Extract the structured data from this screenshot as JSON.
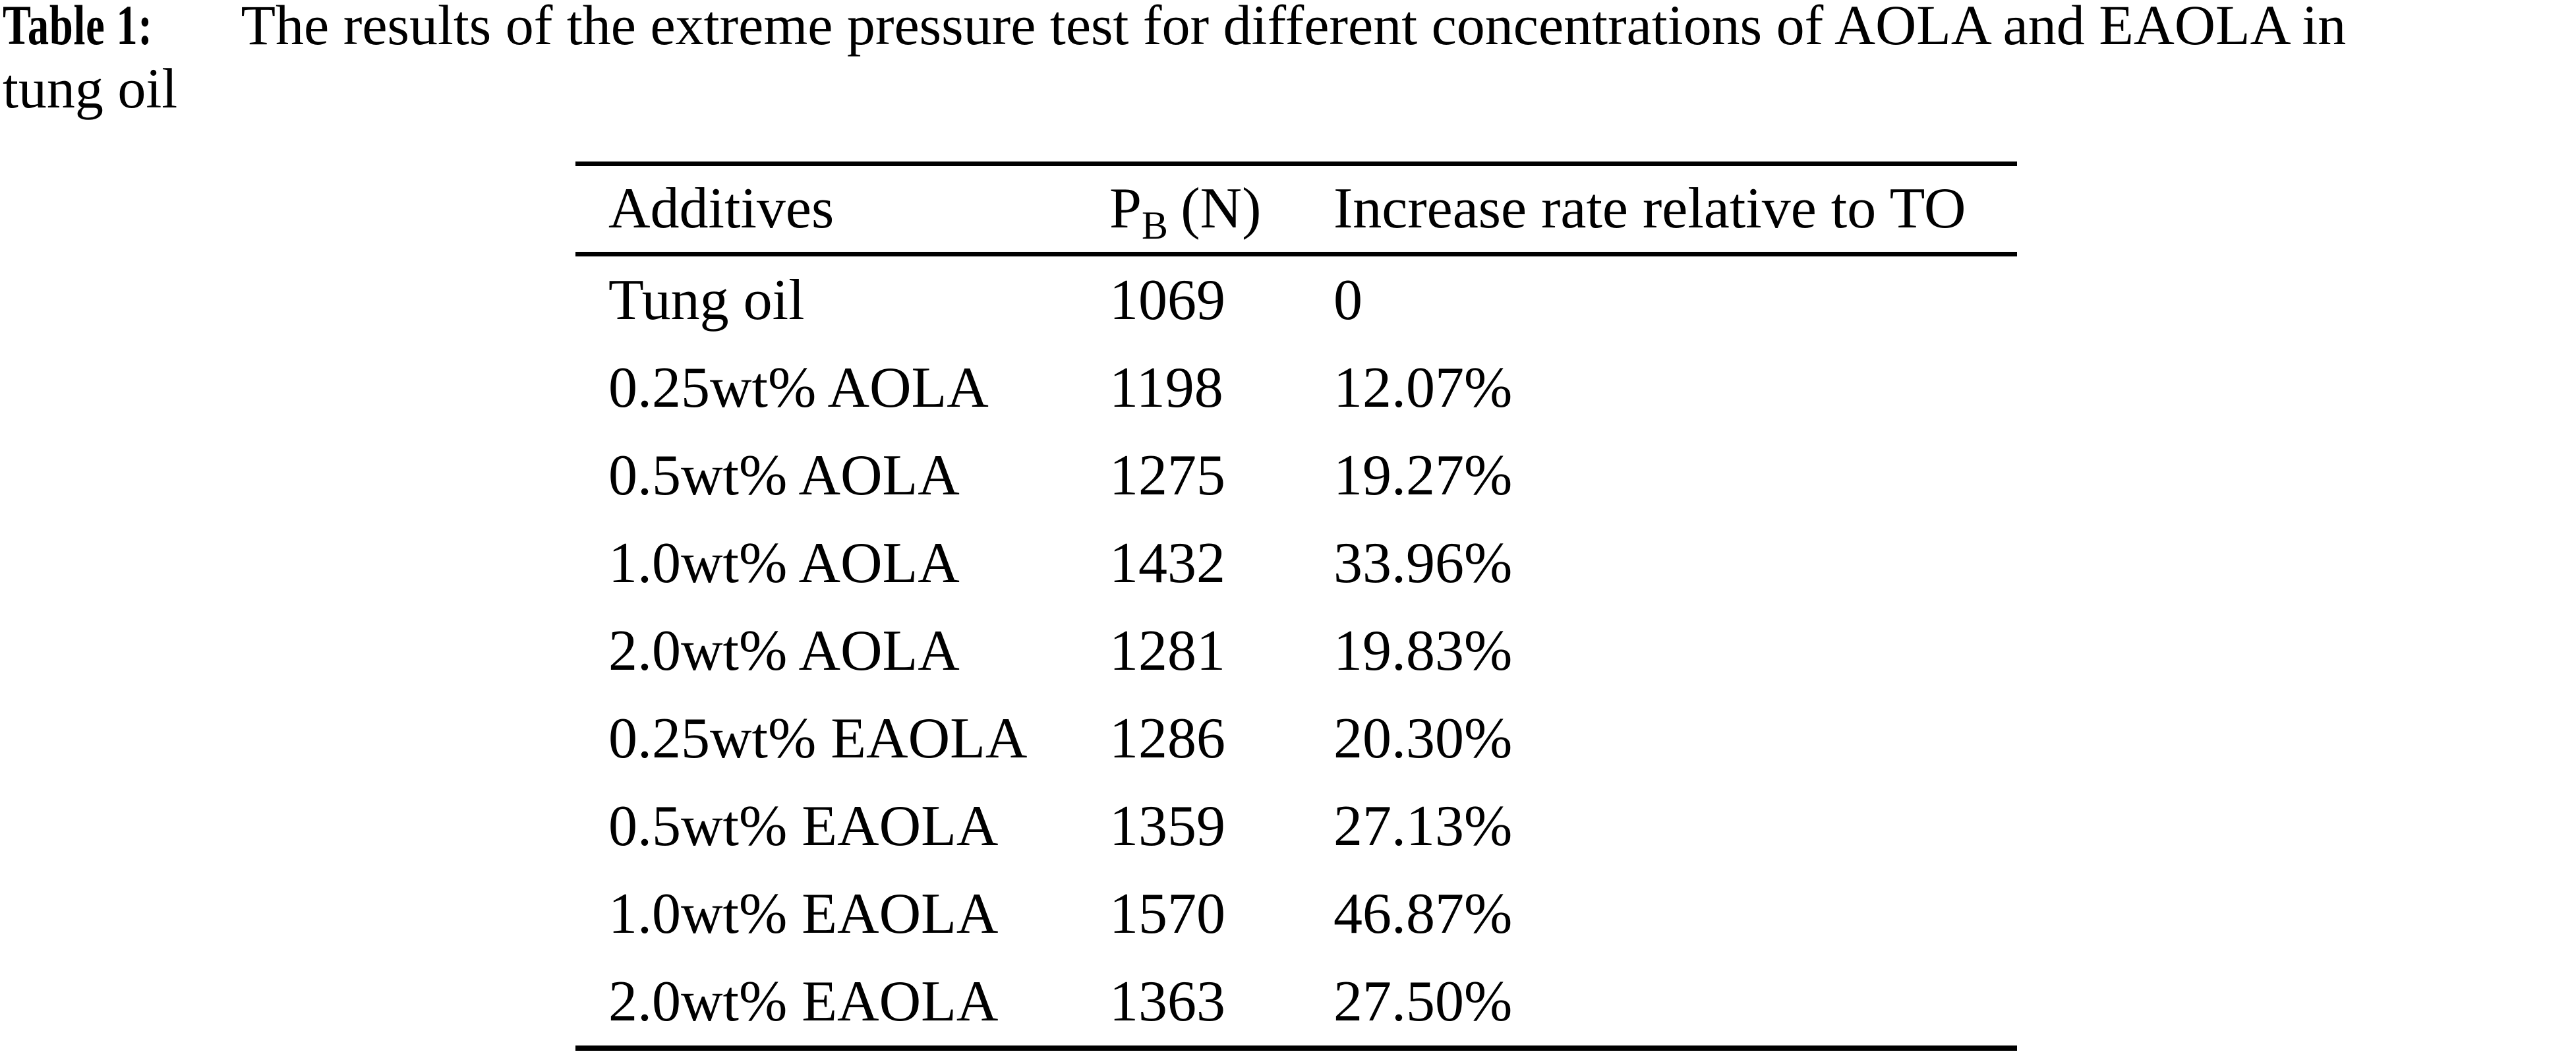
{
  "caption": {
    "label": "Table 1:",
    "line1": "The results of the extreme pressure test for different concentrations of AOLA and EAOLA in",
    "line2": "tung oil"
  },
  "table": {
    "header": {
      "additives": "Additives",
      "pb_symbol": "P",
      "pb_subscript": "B",
      "pb_unit": "(N)",
      "increase": "Increase rate relative to TO"
    },
    "rows": [
      {
        "additive": "Tung oil",
        "pb": "1069",
        "increase": "0"
      },
      {
        "additive": "0.25wt% AOLA",
        "pb": "1198",
        "increase": "12.07%"
      },
      {
        "additive": "0.5wt% AOLA",
        "pb": "1275",
        "increase": "19.27%"
      },
      {
        "additive": "1.0wt% AOLA",
        "pb": "1432",
        "increase": "33.96%"
      },
      {
        "additive": "2.0wt% AOLA",
        "pb": "1281",
        "increase": "19.83%"
      },
      {
        "additive": "0.25wt% EAOLA",
        "pb": "1286",
        "increase": "20.30%"
      },
      {
        "additive": "0.5wt% EAOLA",
        "pb": "1359",
        "increase": "27.13%"
      },
      {
        "additive": "1.0wt% EAOLA",
        "pb": "1570",
        "increase": "46.87%"
      },
      {
        "additive": "2.0wt% EAOLA",
        "pb": "1363",
        "increase": "27.50%"
      }
    ]
  },
  "colors": {
    "text": "#000000",
    "background": "#ffffff",
    "rule": "#000000"
  }
}
